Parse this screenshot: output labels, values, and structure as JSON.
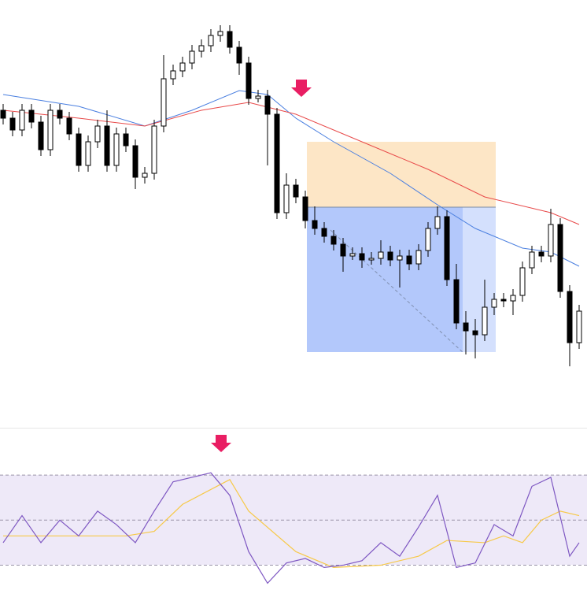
{
  "chart_data": [
    {
      "type": "candlestick",
      "ylim": [
        60,
        600
      ],
      "up_color": "#ffffff",
      "down_color": "#000000",
      "open": [
        460,
        450,
        435,
        460,
        445,
        410,
        460,
        450,
        430,
        390,
        420,
        440,
        390,
        430,
        415,
        375,
        380,
        440,
        500,
        510,
        520,
        535,
        542,
        555,
        560,
        540,
        520,
        475,
        478,
        455,
        330,
        365,
        350,
        320,
        310,
        300,
        290,
        275,
        278,
        270,
        272,
        280,
        270,
        275,
        265,
        282,
        310,
        325,
        245,
        190,
        180,
        175,
        210,
        220,
        218,
        225,
        260,
        280,
        275,
        315,
        230,
        165
      ],
      "high": [
        468,
        458,
        468,
        468,
        453,
        468,
        468,
        458,
        438,
        428,
        448,
        460,
        438,
        438,
        423,
        388,
        448,
        530,
        518,
        528,
        543,
        550,
        563,
        568,
        568,
        548,
        528,
        486,
        486,
        463,
        380,
        373,
        358,
        338,
        318,
        308,
        298,
        286,
        286,
        280,
        295,
        288,
        283,
        283,
        290,
        318,
        338,
        333,
        265,
        205,
        195,
        245,
        228,
        228,
        233,
        268,
        288,
        288,
        335,
        323,
        238,
        213
      ],
      "low": [
        442,
        427,
        427,
        437,
        402,
        402,
        442,
        422,
        382,
        382,
        412,
        382,
        382,
        407,
        360,
        367,
        372,
        432,
        492,
        502,
        512,
        527,
        534,
        547,
        532,
        505,
        467,
        470,
        390,
        322,
        322,
        342,
        310,
        302,
        292,
        282,
        255,
        270,
        260,
        264,
        264,
        262,
        235,
        257,
        257,
        274,
        302,
        237,
        182,
        150,
        145,
        167,
        200,
        210,
        200,
        217,
        252,
        267,
        267,
        222,
        135,
        157
      ],
      "close": [
        450,
        435,
        460,
        445,
        410,
        460,
        450,
        430,
        390,
        420,
        440,
        390,
        430,
        415,
        375,
        380,
        440,
        500,
        510,
        520,
        535,
        542,
        555,
        560,
        540,
        520,
        475,
        478,
        455,
        330,
        365,
        350,
        320,
        310,
        300,
        290,
        275,
        278,
        270,
        272,
        280,
        270,
        275,
        265,
        282,
        310,
        325,
        245,
        190,
        180,
        175,
        210,
        220,
        218,
        225,
        260,
        280,
        275,
        315,
        230,
        165,
        205
      ],
      "overlays": [
        {
          "color": "#4a7fe0",
          "x": [
            0,
            8,
            15,
            20,
            25,
            28,
            31,
            35,
            41,
            46,
            50,
            55,
            58,
            61
          ],
          "values": [
            480,
            465,
            440,
            460,
            485,
            480,
            450,
            420,
            380,
            340,
            310,
            285,
            280,
            262
          ]
        },
        {
          "color": "#e84a4a",
          "x": [
            0,
            8,
            15,
            21,
            26,
            31,
            37,
            45,
            51,
            58,
            61
          ],
          "values": [
            460,
            450,
            440,
            460,
            470,
            455,
            425,
            385,
            350,
            330,
            315
          ]
        }
      ]
    },
    {
      "type": "line",
      "ylim": [
        19,
        91
      ],
      "levels": [
        30,
        50,
        70
      ],
      "series": [
        {
          "color": "#7e57c2",
          "x": [
            0,
            2,
            4,
            6,
            8,
            10,
            12,
            14,
            16,
            18,
            20,
            22,
            24,
            26,
            28,
            30,
            32,
            34,
            36,
            38,
            40,
            42,
            44,
            46,
            48,
            50,
            52,
            54,
            56,
            58,
            60,
            61
          ],
          "values": [
            40,
            52,
            40,
            50,
            43,
            54,
            48,
            40,
            54,
            67,
            69,
            71,
            61,
            36,
            22,
            31,
            33,
            29,
            30,
            32,
            40,
            34,
            47,
            61,
            29,
            31,
            48,
            43,
            65,
            69,
            34,
            40
          ]
        },
        {
          "color": "#f7c948",
          "x": [
            0,
            13,
            16,
            19,
            24,
            26,
            31,
            35,
            40,
            44,
            47,
            51,
            53,
            55,
            57,
            59,
            61
          ],
          "values": [
            43,
            43,
            45,
            57,
            68,
            54,
            36,
            29,
            30,
            34,
            41,
            40,
            43,
            40,
            50,
            54,
            52
          ]
        }
      ]
    }
  ]
}
